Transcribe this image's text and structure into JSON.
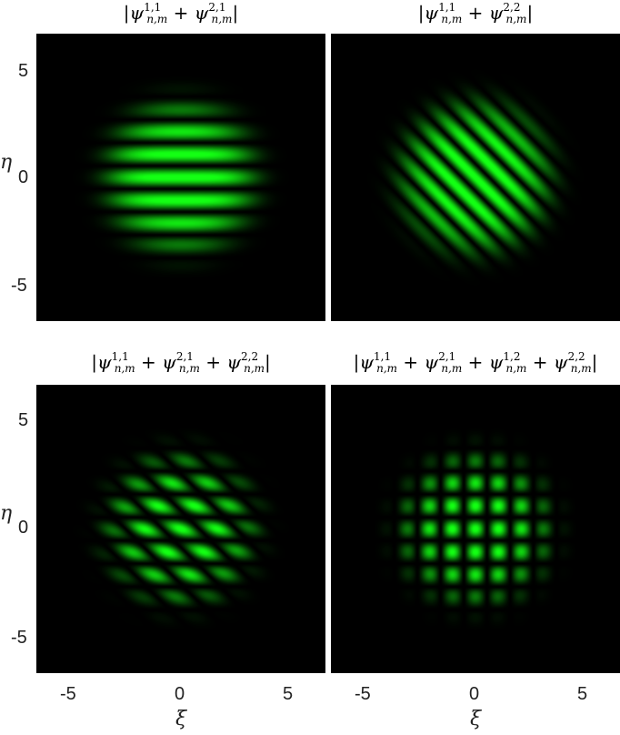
{
  "chart_data": [
    {
      "type": "heatmap",
      "title": "|ψ^{1,1}_{n,m} + ψ^{2,1}_{n,m}|",
      "title_parts": [
        {
          "base": "ψ",
          "sup": "1,1",
          "sub": "n,m"
        },
        {
          "base": "ψ",
          "sup": "2,1",
          "sub": "n,m"
        }
      ],
      "xlabel": "",
      "ylabel": "η",
      "xlim": [
        -6.5,
        6.5
      ],
      "ylim": [
        -6.5,
        6.5
      ],
      "xticks": [],
      "yticks": [
        "5",
        "0",
        "-5"
      ],
      "pattern": "horizontal-stripes",
      "envelope_radius": 3.0,
      "colormap": "black-green"
    },
    {
      "type": "heatmap",
      "title": "|ψ^{1,1}_{n,m} + ψ^{2,2}_{n,m}|",
      "title_parts": [
        {
          "base": "ψ",
          "sup": "1,1",
          "sub": "n,m"
        },
        {
          "base": "ψ",
          "sup": "2,2",
          "sub": "n,m"
        }
      ],
      "xlabel": "",
      "ylabel": "",
      "xlim": [
        -6.5,
        6.5
      ],
      "ylim": [
        -6.5,
        6.5
      ],
      "xticks": [],
      "yticks": [],
      "pattern": "diagonal-stripes",
      "envelope_radius": 3.0,
      "colormap": "black-green"
    },
    {
      "type": "heatmap",
      "title": "|ψ^{1,1}_{n,m} + ψ^{2,1}_{n,m} + ψ^{2,2}_{n,m}|",
      "title_parts": [
        {
          "base": "ψ",
          "sup": "1,1",
          "sub": "n,m"
        },
        {
          "base": "ψ",
          "sup": "2,1",
          "sub": "n,m"
        },
        {
          "base": "ψ",
          "sup": "2,2",
          "sub": "n,m"
        }
      ],
      "xlabel": "ξ",
      "ylabel": "η",
      "xlim": [
        -6.5,
        6.5
      ],
      "ylim": [
        -6.5,
        6.5
      ],
      "xticks": [
        "-5",
        "0",
        "5"
      ],
      "yticks": [
        "5",
        "0",
        "-5"
      ],
      "pattern": "skewed-lattice",
      "envelope_radius": 3.0,
      "colormap": "black-green"
    },
    {
      "type": "heatmap",
      "title": "|ψ^{1,1}_{n,m} + ψ^{2,1}_{n,m} + ψ^{1,2}_{n,m} + ψ^{2,2}_{n,m}|",
      "title_parts": [
        {
          "base": "ψ",
          "sup": "1,1",
          "sub": "n,m"
        },
        {
          "base": "ψ",
          "sup": "2,1",
          "sub": "n,m"
        },
        {
          "base": "ψ",
          "sup": "1,2",
          "sub": "n,m"
        },
        {
          "base": "ψ",
          "sup": "2,2",
          "sub": "n,m"
        }
      ],
      "xlabel": "ξ",
      "ylabel": "",
      "xlim": [
        -6.5,
        6.5
      ],
      "ylim": [
        -6.5,
        6.5
      ],
      "xticks": [
        "-5",
        "0",
        "5"
      ],
      "yticks": [],
      "pattern": "square-lattice",
      "envelope_radius": 3.0,
      "colormap": "black-green"
    }
  ]
}
